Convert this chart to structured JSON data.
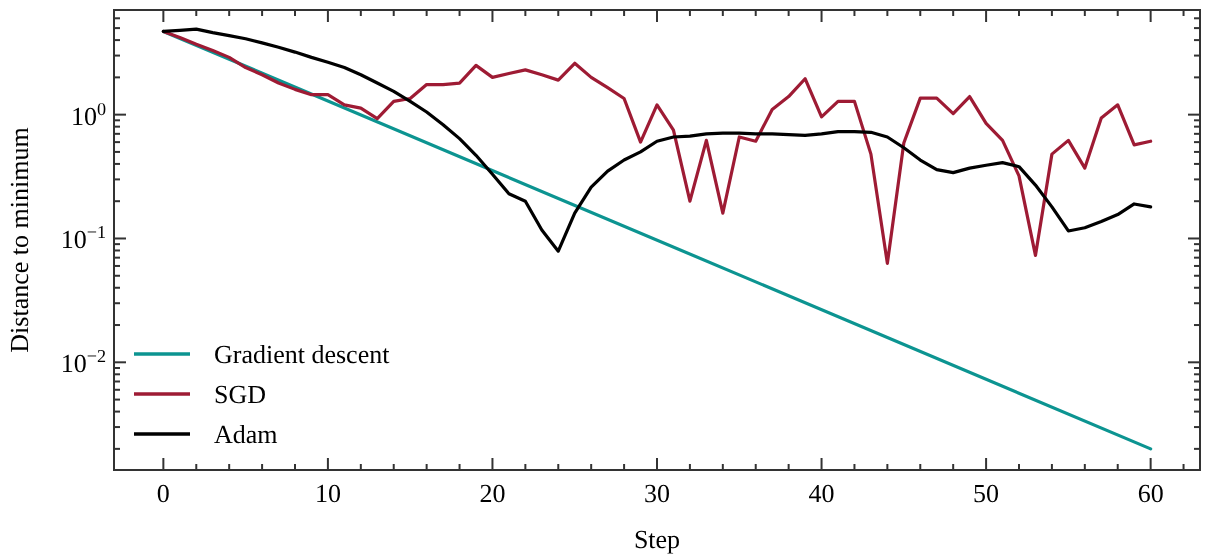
{
  "chart_data": {
    "type": "line",
    "xlabel": "Step",
    "ylabel": "Distance to minimum",
    "log": true,
    "legend": "bottom left",
    "grid": false,
    "xlim": [
      -3,
      63
    ],
    "ylim": [
      0.00135,
      7
    ],
    "xticks": [
      0,
      {
        "value": 2,
        "label": null
      },
      {
        "value": 4,
        "label": null
      },
      {
        "value": 6,
        "label": null
      },
      {
        "value": 8,
        "label": null
      },
      10,
      {
        "value": 12,
        "label": null
      },
      {
        "value": 14,
        "label": null
      },
      {
        "value": 16,
        "label": null
      },
      {
        "value": 18,
        "label": null
      },
      20,
      {
        "value": 22,
        "label": null
      },
      {
        "value": 24,
        "label": null
      },
      {
        "value": 26,
        "label": null
      },
      {
        "value": 28,
        "label": null
      },
      30,
      {
        "value": 32,
        "label": null
      },
      {
        "value": 34,
        "label": null
      },
      {
        "value": 36,
        "label": null
      },
      {
        "value": 38,
        "label": null
      },
      40,
      {
        "value": 42,
        "label": null
      },
      {
        "value": 44,
        "label": null
      },
      {
        "value": 46,
        "label": null
      },
      {
        "value": 48,
        "label": null
      },
      50,
      {
        "value": 52,
        "label": null
      },
      {
        "value": 54,
        "label": null
      },
      {
        "value": 56,
        "label": null
      },
      {
        "value": 58,
        "label": null
      },
      60,
      {
        "value": 62,
        "label": null
      }
    ],
    "yticks": [
      {
        "value": 0.002,
        "label": null
      },
      {
        "value": 0.003,
        "label": null
      },
      {
        "value": 0.004,
        "label": null
      },
      {
        "value": 0.005,
        "label": null
      },
      {
        "value": 0.006,
        "label": null
      },
      {
        "value": 0.007,
        "label": null
      },
      {
        "value": 0.008,
        "label": null
      },
      {
        "value": 0.009,
        "label": null
      },
      {
        "value": 0.01,
        "label": "10$^{−2}$"
      },
      {
        "value": 0.02,
        "label": null
      },
      {
        "value": 0.03,
        "label": null
      },
      {
        "value": 0.04,
        "label": null
      },
      {
        "value": 0.05,
        "label": null
      },
      {
        "value": 0.06,
        "label": null
      },
      {
        "value": 0.07,
        "label": null
      },
      {
        "value": 0.08,
        "label": null
      },
      {
        "value": 0.09,
        "label": null
      },
      {
        "value": 0.1,
        "label": "10$^{−1}$"
      },
      {
        "value": 0.2,
        "label": null
      },
      {
        "value": 0.3,
        "label": null
      },
      {
        "value": 0.4,
        "label": null
      },
      {
        "value": 0.5,
        "label": null
      },
      {
        "value": 0.6,
        "label": null
      },
      {
        "value": 0.7,
        "label": null
      },
      {
        "value": 0.8,
        "label": null
      },
      {
        "value": 0.9,
        "label": null
      },
      {
        "value": 1,
        "label": "10$^{0}$"
      },
      {
        "value": 2,
        "label": null
      },
      {
        "value": 3,
        "label": null
      },
      {
        "value": 4,
        "label": null
      },
      {
        "value": 5,
        "label": null
      },
      {
        "value": 6,
        "label": null
      },
      {
        "value": 7,
        "label": null
      }
    ],
    "series": [
      {
        "name": "Gradient descent",
        "color": "#0c9491",
        "x": [
          0,
          60
        ],
        "values": [
          4.7,
          0.002
        ]
      },
      {
        "name": "SGD",
        "color": "#9e1b34",
        "x": [
          0,
          1,
          2,
          3,
          4,
          5,
          6,
          7,
          8,
          9,
          10,
          11,
          12,
          13,
          14,
          15,
          16,
          17,
          18,
          19,
          20,
          21,
          22,
          23,
          24,
          25,
          26,
          27,
          28,
          29,
          30,
          31,
          32,
          33,
          34,
          35,
          36,
          37,
          38,
          39,
          40,
          41,
          42,
          43,
          44,
          45,
          46,
          47,
          48,
          49,
          50,
          51,
          52,
          53,
          54,
          55,
          56,
          57,
          58,
          59,
          60
        ],
        "values": [
          4.7,
          4.2,
          3.7,
          3.3,
          2.9,
          2.4,
          2.1,
          1.8,
          1.6,
          1.45,
          1.45,
          1.2,
          1.13,
          0.93,
          1.28,
          1.35,
          1.75,
          1.75,
          1.8,
          2.5,
          2.0,
          2.15,
          2.3,
          2.1,
          1.9,
          2.6,
          2.0,
          1.65,
          1.35,
          0.6,
          1.2,
          0.75,
          0.2,
          0.62,
          0.16,
          0.66,
          0.61,
          1.1,
          1.4,
          1.95,
          0.96,
          1.28,
          1.28,
          0.48,
          0.063,
          0.59,
          1.36,
          1.36,
          1.02,
          1.4,
          0.85,
          0.62,
          0.32,
          0.073,
          0.48,
          0.62,
          0.37,
          0.94,
          1.2,
          0.57,
          0.61
        ]
      },
      {
        "name": "Adam",
        "color": "#000000",
        "x": [
          0,
          1,
          2,
          3,
          4,
          5,
          6,
          7,
          8,
          9,
          10,
          11,
          12,
          13,
          14,
          15,
          16,
          17,
          18,
          19,
          20,
          21,
          22,
          23,
          24,
          25,
          26,
          27,
          28,
          29,
          30,
          31,
          32,
          33,
          34,
          35,
          36,
          37,
          38,
          39,
          40,
          41,
          42,
          43,
          44,
          45,
          46,
          47,
          48,
          49,
          50,
          51,
          52,
          53,
          54,
          55,
          56,
          57,
          58,
          59,
          60
        ],
        "values": [
          4.7,
          4.8,
          4.9,
          4.6,
          4.35,
          4.1,
          3.8,
          3.5,
          3.2,
          2.9,
          2.65,
          2.4,
          2.1,
          1.8,
          1.54,
          1.28,
          1.05,
          0.83,
          0.64,
          0.47,
          0.33,
          0.23,
          0.2,
          0.117,
          0.079,
          0.16,
          0.26,
          0.35,
          0.43,
          0.5,
          0.61,
          0.66,
          0.67,
          0.7,
          0.71,
          0.71,
          0.7,
          0.7,
          0.69,
          0.68,
          0.7,
          0.73,
          0.73,
          0.72,
          0.66,
          0.54,
          0.43,
          0.36,
          0.34,
          0.37,
          0.39,
          0.41,
          0.38,
          0.27,
          0.18,
          0.115,
          0.122,
          0.137,
          0.156,
          0.19,
          0.18
        ]
      }
    ]
  }
}
